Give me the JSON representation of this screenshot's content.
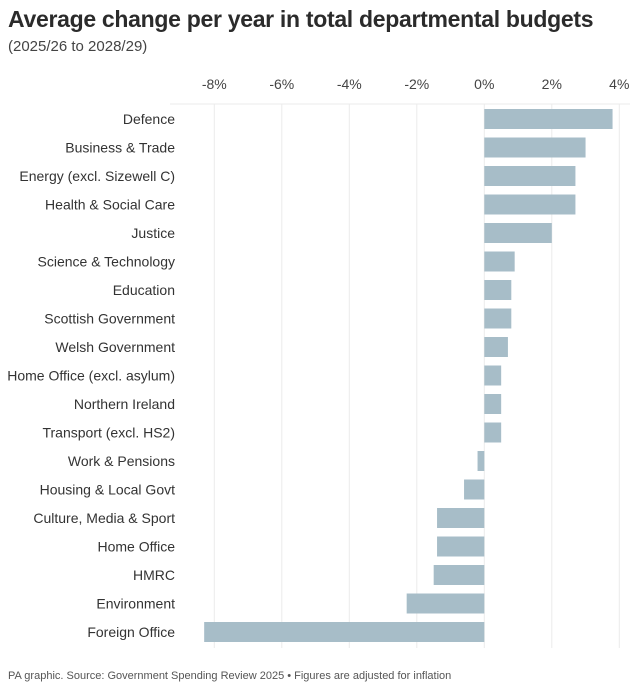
{
  "chart_data": {
    "type": "bar",
    "orientation": "horizontal",
    "title": "Average change per year in total departmental budgets",
    "subtitle": "(2025/26 to 2028/29)",
    "categories": [
      "Defence",
      "Business & Trade",
      "Energy (excl. Sizewell C)",
      "Health & Social Care",
      "Justice",
      "Science & Technology",
      "Education",
      "Scottish Government",
      "Welsh Government",
      "Home Office (excl. asylum)",
      "Northern Ireland",
      "Transport (excl. HS2)",
      "Work & Pensions",
      "Housing & Local Govt",
      "Culture, Media & Sport",
      "Home Office",
      "HMRC",
      "Environment",
      "Foreign Office"
    ],
    "values": [
      3.8,
      3.0,
      2.7,
      2.7,
      2.0,
      0.9,
      0.8,
      0.8,
      0.7,
      0.5,
      0.5,
      0.5,
      -0.2,
      -0.6,
      -1.4,
      -1.4,
      -1.5,
      -2.3,
      -8.3
    ],
    "xlim": [
      -8.9,
      4
    ],
    "xticks": [
      -8,
      -6,
      -4,
      -2,
      0,
      2,
      4
    ],
    "xtick_labels": [
      "-8%",
      "-6%",
      "-4%",
      "-2%",
      "0%",
      "2%",
      "4%"
    ],
    "xaxis_position": "top",
    "grid": true,
    "bar_color": "#a7bdc8",
    "xlabel": "",
    "ylabel": ""
  },
  "footer": "PA graphic. Source: Government Spending Review 2025 • Figures are adjusted for inflation"
}
